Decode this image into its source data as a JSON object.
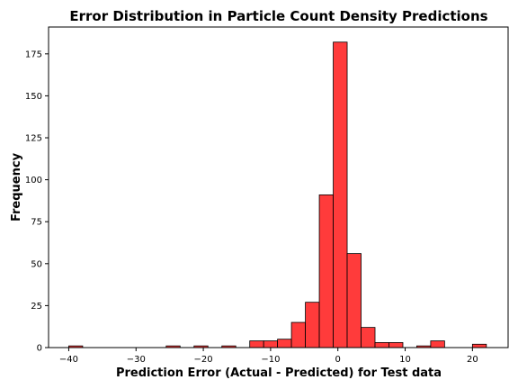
{
  "chart_data": {
    "type": "bar",
    "title": "Error Distribution in Particle Count Density Predictions",
    "xlabel": "Prediction Error (Actual - Predicted) for Test data",
    "ylabel": "Frequency",
    "bin_edges": [
      -40.0,
      -37.93,
      -35.86,
      -33.79,
      -31.72,
      -29.66,
      -27.59,
      -25.52,
      -23.45,
      -21.38,
      -19.31,
      -17.24,
      -15.17,
      -13.1,
      -11.03,
      -8.97,
      -6.9,
      -4.83,
      -2.76,
      -0.69,
      1.38,
      3.45,
      5.52,
      7.59,
      9.66,
      11.72,
      13.79,
      15.86,
      17.93,
      20.0,
      22.07
    ],
    "values": [
      1,
      0,
      0,
      0,
      0,
      0,
      0,
      1,
      0,
      1,
      0,
      1,
      0,
      4,
      4,
      5,
      15,
      27,
      91,
      182,
      56,
      12,
      3,
      3,
      0,
      1,
      4,
      0,
      0,
      2
    ],
    "xlim": [
      -43,
      25.3
    ],
    "ylim": [
      0,
      191
    ],
    "xticks": [
      -40,
      -30,
      -20,
      -10,
      0,
      10,
      20
    ],
    "xtick_labels": [
      "−40",
      "−30",
      "−20",
      "−10",
      "0",
      "10",
      "20"
    ],
    "yticks": [
      0,
      25,
      50,
      75,
      100,
      125,
      150,
      175
    ],
    "ytick_labels": [
      "0",
      "25",
      "50",
      "75",
      "100",
      "125",
      "150",
      "175"
    ],
    "grid": false,
    "bar_color": "#ff3b3b",
    "edge_color": "#000000"
  }
}
